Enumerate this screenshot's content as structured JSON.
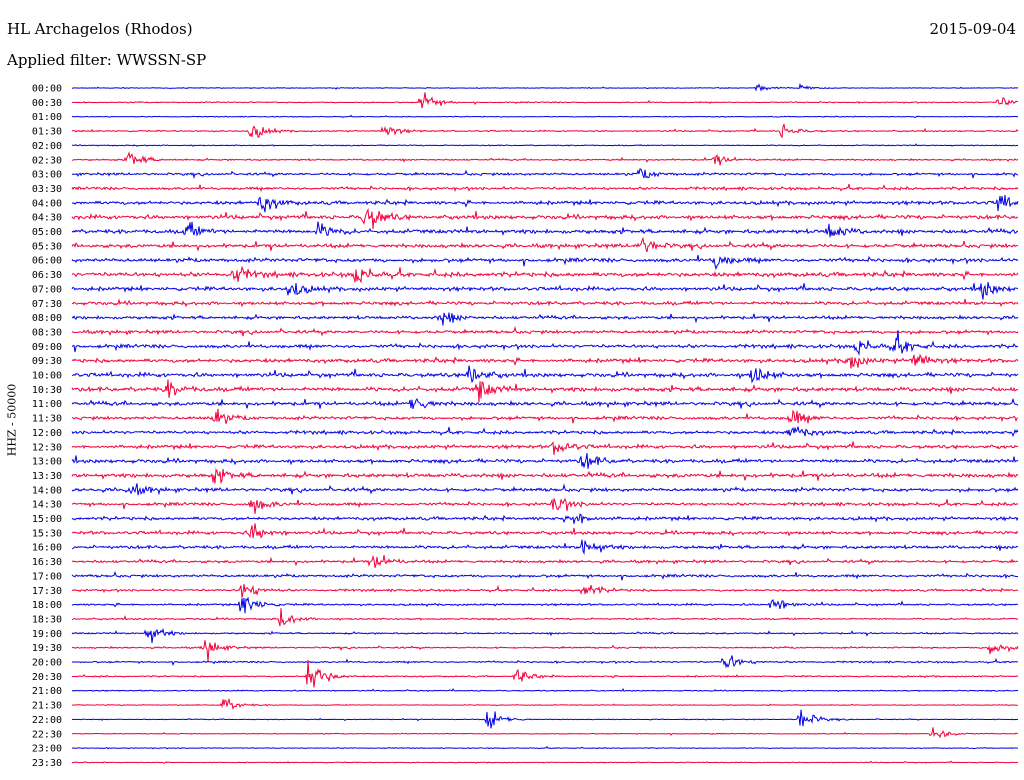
{
  "header": {
    "station": "HL Archagelos (Rhodos)",
    "date": "2015-09-04",
    "filter": "Applied filter: WWSSN-SP"
  },
  "chart_data": {
    "type": "line",
    "title": "HL Archagelos (Rhodos)",
    "ylabel": "HHZ - 50000",
    "rows": [
      "00:00",
      "00:30",
      "01:00",
      "01:30",
      "02:00",
      "02:30",
      "03:00",
      "03:30",
      "04:00",
      "04:30",
      "05:00",
      "05:30",
      "06:00",
      "06:30",
      "07:00",
      "07:30",
      "08:00",
      "08:30",
      "09:00",
      "09:30",
      "10:00",
      "10:30",
      "11:00",
      "11:30",
      "12:00",
      "12:30",
      "13:00",
      "13:30",
      "14:00",
      "14:30",
      "15:00",
      "15:30",
      "16:00",
      "16:30",
      "17:00",
      "17:30",
      "18:00",
      "18:30",
      "19:00",
      "19:30",
      "20:00",
      "20:30",
      "21:00",
      "21:30",
      "22:00",
      "22:30",
      "23:00",
      "23:30"
    ],
    "colors": [
      "#0000e6",
      "#f0003a"
    ],
    "noise_level": [
      0.3,
      0.4,
      0.3,
      0.5,
      0.4,
      0.6,
      0.9,
      1.0,
      1.3,
      1.5,
      1.5,
      1.4,
      1.4,
      1.6,
      1.4,
      1.3,
      1.2,
      1.2,
      1.3,
      1.4,
      1.5,
      1.6,
      1.4,
      1.2,
      1.2,
      1.3,
      1.4,
      1.5,
      1.3,
      1.1,
      1.2,
      1.2,
      1.2,
      1.0,
      1.0,
      0.8,
      0.7,
      0.6,
      0.6,
      0.6,
      0.6,
      0.5,
      0.4,
      0.3,
      0.3,
      0.3,
      0.3,
      0.3
    ],
    "events": [
      {
        "row": 0,
        "t": 0.725,
        "amp": 3
      },
      {
        "row": 0,
        "t": 0.77,
        "amp": 3
      },
      {
        "row": 1,
        "t": 0.37,
        "amp": 10
      },
      {
        "row": 1,
        "t": 0.98,
        "amp": 6
      },
      {
        "row": 3,
        "t": 0.19,
        "amp": 8
      },
      {
        "row": 3,
        "t": 0.33,
        "amp": 7
      },
      {
        "row": 3,
        "t": 0.75,
        "amp": 7
      },
      {
        "row": 5,
        "t": 0.06,
        "amp": 8
      },
      {
        "row": 5,
        "t": 0.68,
        "amp": 5
      },
      {
        "row": 6,
        "t": 0.6,
        "amp": 6
      },
      {
        "row": 8,
        "t": 0.2,
        "amp": 10
      },
      {
        "row": 8,
        "t": 0.98,
        "amp": 9
      },
      {
        "row": 9,
        "t": 0.31,
        "amp": 16
      },
      {
        "row": 10,
        "t": 0.12,
        "amp": 9
      },
      {
        "row": 10,
        "t": 0.26,
        "amp": 8
      },
      {
        "row": 10,
        "t": 0.8,
        "amp": 8
      },
      {
        "row": 11,
        "t": 0.6,
        "amp": 9
      },
      {
        "row": 12,
        "t": 0.68,
        "amp": 8
      },
      {
        "row": 13,
        "t": 0.17,
        "amp": 10
      },
      {
        "row": 13,
        "t": 0.3,
        "amp": 11
      },
      {
        "row": 14,
        "t": 0.23,
        "amp": 8
      },
      {
        "row": 14,
        "t": 0.96,
        "amp": 9
      },
      {
        "row": 16,
        "t": 0.39,
        "amp": 7
      },
      {
        "row": 18,
        "t": 0.83,
        "amp": 9
      },
      {
        "row": 18,
        "t": 0.87,
        "amp": 10
      },
      {
        "row": 19,
        "t": 0.82,
        "amp": 9
      },
      {
        "row": 19,
        "t": 0.89,
        "amp": 10
      },
      {
        "row": 20,
        "t": 0.42,
        "amp": 9
      },
      {
        "row": 20,
        "t": 0.72,
        "amp": 10
      },
      {
        "row": 21,
        "t": 0.43,
        "amp": 10
      },
      {
        "row": 21,
        "t": 0.1,
        "amp": 8
      },
      {
        "row": 22,
        "t": 0.36,
        "amp": 8
      },
      {
        "row": 23,
        "t": 0.15,
        "amp": 8
      },
      {
        "row": 23,
        "t": 0.76,
        "amp": 8
      },
      {
        "row": 24,
        "t": 0.76,
        "amp": 9
      },
      {
        "row": 25,
        "t": 0.51,
        "amp": 8
      },
      {
        "row": 26,
        "t": 0.54,
        "amp": 9
      },
      {
        "row": 27,
        "t": 0.15,
        "amp": 8
      },
      {
        "row": 28,
        "t": 0.06,
        "amp": 7
      },
      {
        "row": 29,
        "t": 0.19,
        "amp": 9
      },
      {
        "row": 29,
        "t": 0.51,
        "amp": 9
      },
      {
        "row": 30,
        "t": 0.53,
        "amp": 9
      },
      {
        "row": 31,
        "t": 0.19,
        "amp": 10
      },
      {
        "row": 32,
        "t": 0.54,
        "amp": 10
      },
      {
        "row": 33,
        "t": 0.32,
        "amp": 8
      },
      {
        "row": 35,
        "t": 0.18,
        "amp": 10
      },
      {
        "row": 35,
        "t": 0.54,
        "amp": 8
      },
      {
        "row": 36,
        "t": 0.18,
        "amp": 12
      },
      {
        "row": 36,
        "t": 0.74,
        "amp": 8
      },
      {
        "row": 37,
        "t": 0.22,
        "amp": 9
      },
      {
        "row": 38,
        "t": 0.08,
        "amp": 9
      },
      {
        "row": 39,
        "t": 0.14,
        "amp": 10
      },
      {
        "row": 39,
        "t": 0.97,
        "amp": 9
      },
      {
        "row": 40,
        "t": 0.69,
        "amp": 10
      },
      {
        "row": 41,
        "t": 0.25,
        "amp": 20
      },
      {
        "row": 41,
        "t": 0.47,
        "amp": 7
      },
      {
        "row": 43,
        "t": 0.16,
        "amp": 8
      },
      {
        "row": 44,
        "t": 0.44,
        "amp": 10
      },
      {
        "row": 44,
        "t": 0.77,
        "amp": 10
      },
      {
        "row": 45,
        "t": 0.91,
        "amp": 9
      }
    ]
  }
}
